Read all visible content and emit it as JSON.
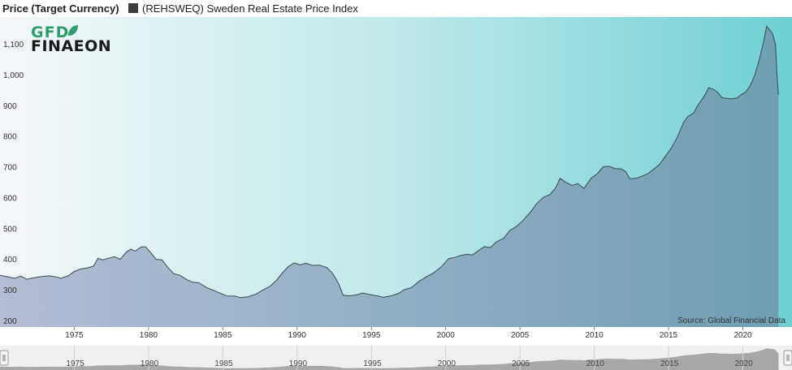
{
  "header": {
    "price_label": "Price (Target Currency)",
    "series_label": "(REHSWEQ) Sweden Real Estate Price Index"
  },
  "logo": {
    "line1": "GFD",
    "line2": "FINAEON",
    "green": "#2e9e6a",
    "dark": "#1a1a1a"
  },
  "source_text": "Source: Global Financial Data",
  "colors": {
    "bg_left": "#f4f7f9",
    "bg_mid": "#bfe9ea",
    "bg_right": "#6fd0d2",
    "area_left": "#b4bdd4",
    "area_right": "#6f9fb2",
    "line": "#3a4a55",
    "legend_swatch": "#3d3d3d",
    "navigator_bg": "#eef0f2",
    "navigator_area": "#6e6e6e"
  },
  "chart_data": {
    "type": "area",
    "title": "",
    "xlabel": "",
    "ylabel": "Price (Target Currency)",
    "xlim": [
      1970,
      2022.4
    ],
    "ylim": [
      200,
      1175
    ],
    "grid": false,
    "legend": "top-left",
    "y_ticks": [
      {
        "value": 200,
        "label": "200"
      },
      {
        "value": 300,
        "label": "300"
      },
      {
        "value": 400,
        "label": "400"
      },
      {
        "value": 500,
        "label": "500"
      },
      {
        "value": 600,
        "label": "600"
      },
      {
        "value": 700,
        "label": "700"
      },
      {
        "value": 800,
        "label": "800"
      },
      {
        "value": 900,
        "label": "900"
      },
      {
        "value": 1000,
        "label": "1,000"
      },
      {
        "value": 1100,
        "label": "1,100"
      }
    ],
    "x_ticks": [
      {
        "value": 1975,
        "label": "1975"
      },
      {
        "value": 1980,
        "label": "1980"
      },
      {
        "value": 1985,
        "label": "1985"
      },
      {
        "value": 1990,
        "label": "1990"
      },
      {
        "value": 1995,
        "label": "1995"
      },
      {
        "value": 2000,
        "label": "2000"
      },
      {
        "value": 2005,
        "label": "2005"
      },
      {
        "value": 2010,
        "label": "2010"
      },
      {
        "value": 2015,
        "label": "2015"
      },
      {
        "value": 2020,
        "label": "2020"
      }
    ],
    "series": [
      {
        "name": "(REHSWEQ) Sweden Real Estate Price Index",
        "points": [
          [
            1970.0,
            350
          ],
          [
            1970.5,
            345
          ],
          [
            1971.0,
            340
          ],
          [
            1971.4,
            347
          ],
          [
            1971.8,
            337
          ],
          [
            1972.3,
            342
          ],
          [
            1972.8,
            346
          ],
          [
            1973.3,
            348
          ],
          [
            1973.8,
            344
          ],
          [
            1974.1,
            340
          ],
          [
            1974.6,
            348
          ],
          [
            1975.0,
            362
          ],
          [
            1975.4,
            370
          ],
          [
            1975.9,
            374
          ],
          [
            1976.3,
            380
          ],
          [
            1976.6,
            405
          ],
          [
            1976.9,
            400
          ],
          [
            1977.3,
            405
          ],
          [
            1977.7,
            410
          ],
          [
            1978.1,
            402
          ],
          [
            1978.5,
            425
          ],
          [
            1978.8,
            435
          ],
          [
            1979.1,
            428
          ],
          [
            1979.5,
            442
          ],
          [
            1979.8,
            442
          ],
          [
            1980.2,
            420
          ],
          [
            1980.5,
            402
          ],
          [
            1980.9,
            400
          ],
          [
            1981.3,
            375
          ],
          [
            1981.7,
            355
          ],
          [
            1982.1,
            350
          ],
          [
            1982.6,
            335
          ],
          [
            1983.0,
            327
          ],
          [
            1983.4,
            325
          ],
          [
            1983.9,
            310
          ],
          [
            1984.4,
            300
          ],
          [
            1984.9,
            290
          ],
          [
            1985.3,
            282
          ],
          [
            1985.8,
            282
          ],
          [
            1986.2,
            277
          ],
          [
            1986.7,
            280
          ],
          [
            1987.2,
            288
          ],
          [
            1987.7,
            302
          ],
          [
            1988.2,
            315
          ],
          [
            1988.6,
            333
          ],
          [
            1989.0,
            357
          ],
          [
            1989.4,
            378
          ],
          [
            1989.8,
            390
          ],
          [
            1990.2,
            384
          ],
          [
            1990.6,
            389
          ],
          [
            1991.0,
            382
          ],
          [
            1991.5,
            383
          ],
          [
            1992.0,
            375
          ],
          [
            1992.4,
            355
          ],
          [
            1992.8,
            322
          ],
          [
            1993.1,
            285
          ],
          [
            1993.5,
            283
          ],
          [
            1994.0,
            286
          ],
          [
            1994.4,
            292
          ],
          [
            1994.9,
            287
          ],
          [
            1995.4,
            283
          ],
          [
            1995.8,
            278
          ],
          [
            1996.3,
            283
          ],
          [
            1996.8,
            290
          ],
          [
            1997.2,
            303
          ],
          [
            1997.7,
            310
          ],
          [
            1998.2,
            330
          ],
          [
            1998.7,
            345
          ],
          [
            1999.2,
            358
          ],
          [
            1999.7,
            377
          ],
          [
            2000.2,
            404
          ],
          [
            2000.6,
            408
          ],
          [
            2001.0,
            414
          ],
          [
            2001.4,
            418
          ],
          [
            2001.8,
            416
          ],
          [
            2002.2,
            430
          ],
          [
            2002.6,
            443
          ],
          [
            2003.0,
            440
          ],
          [
            2003.4,
            458
          ],
          [
            2003.9,
            470
          ],
          [
            2004.3,
            495
          ],
          [
            2004.8,
            510
          ],
          [
            2005.2,
            528
          ],
          [
            2005.7,
            555
          ],
          [
            2006.1,
            582
          ],
          [
            2006.6,
            604
          ],
          [
            2007.0,
            612
          ],
          [
            2007.4,
            634
          ],
          [
            2007.7,
            665
          ],
          [
            2008.1,
            652
          ],
          [
            2008.5,
            642
          ],
          [
            2008.9,
            648
          ],
          [
            2009.3,
            632
          ],
          [
            2009.8,
            666
          ],
          [
            2010.2,
            680
          ],
          [
            2010.6,
            703
          ],
          [
            2011.0,
            704
          ],
          [
            2011.4,
            697
          ],
          [
            2011.8,
            696
          ],
          [
            2012.1,
            688
          ],
          [
            2012.4,
            664
          ],
          [
            2012.8,
            665
          ],
          [
            2013.2,
            672
          ],
          [
            2013.6,
            680
          ],
          [
            2014.0,
            695
          ],
          [
            2014.4,
            711
          ],
          [
            2014.8,
            738
          ],
          [
            2015.2,
            765
          ],
          [
            2015.6,
            800
          ],
          [
            2016.0,
            846
          ],
          [
            2016.3,
            866
          ],
          [
            2016.7,
            878
          ],
          [
            2017.0,
            905
          ],
          [
            2017.4,
            932
          ],
          [
            2017.7,
            960
          ],
          [
            2018.0,
            955
          ],
          [
            2018.3,
            945
          ],
          [
            2018.6,
            927
          ],
          [
            2018.9,
            925
          ],
          [
            2019.2,
            924
          ],
          [
            2019.6,
            926
          ],
          [
            2019.9,
            938
          ],
          [
            2020.2,
            946
          ],
          [
            2020.5,
            967
          ],
          [
            2020.8,
            1000
          ],
          [
            2021.1,
            1050
          ],
          [
            2021.4,
            1110
          ],
          [
            2021.6,
            1160
          ],
          [
            2021.8,
            1148
          ],
          [
            2022.0,
            1135
          ],
          [
            2022.2,
            1100
          ],
          [
            2022.3,
            1000
          ],
          [
            2022.4,
            937
          ]
        ]
      }
    ]
  }
}
